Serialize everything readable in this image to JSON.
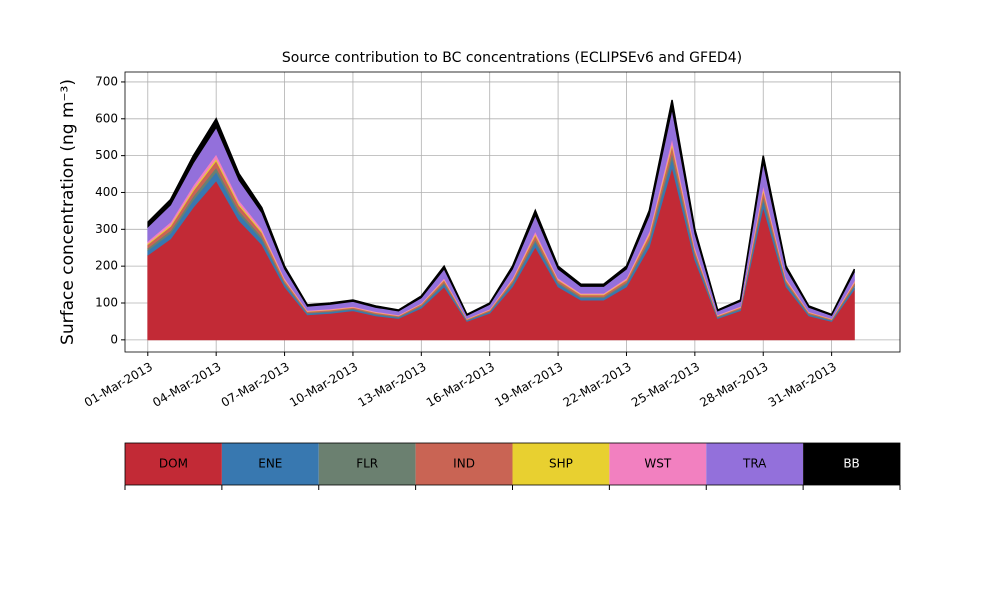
{
  "chart_data": {
    "type": "stacked_area",
    "title": "Source contribution to BC concentrations (ECLIPSEv6 and GFED4)",
    "y_label": "Surface concentration (ng m⁻³)",
    "x": [
      "01-Mar-2013",
      "02-Mar-2013",
      "03-Mar-2013",
      "04-Mar-2013",
      "05-Mar-2013",
      "06-Mar-2013",
      "07-Mar-2013",
      "08-Mar-2013",
      "09-Mar-2013",
      "10-Mar-2013",
      "11-Mar-2013",
      "12-Mar-2013",
      "13-Mar-2013",
      "14-Mar-2013",
      "15-Mar-2013",
      "16-Mar-2013",
      "17-Mar-2013",
      "18-Mar-2013",
      "19-Mar-2013",
      "20-Mar-2013",
      "21-Mar-2013",
      "22-Mar-2013",
      "23-Mar-2013",
      "24-Mar-2013",
      "25-Mar-2013",
      "26-Mar-2013",
      "27-Mar-2013",
      "28-Mar-2013",
      "29-Mar-2013",
      "30-Mar-2013",
      "31-Mar-2013",
      "01-Apr-2013"
    ],
    "series": [
      {
        "name": "DOM",
        "color": "#c22a36",
        "values": [
          230,
          274,
          360,
          432,
          324,
          259,
          144,
          68,
          72,
          79,
          65,
          58,
          86,
          144,
          50,
          72,
          144,
          252,
          144,
          108,
          108,
          144,
          252,
          468,
          216,
          58,
          79,
          360,
          144,
          65,
          50,
          137
        ]
      },
      {
        "name": "ENE",
        "color": "#3878b0",
        "values": [
          13,
          15,
          20,
          24,
          18,
          14,
          8,
          4,
          4,
          4,
          4,
          3,
          5,
          8,
          3,
          4,
          8,
          14,
          8,
          6,
          6,
          8,
          14,
          26,
          12,
          3,
          4,
          20,
          8,
          4,
          3,
          8
        ]
      },
      {
        "name": "FLR",
        "color": "#6b8070",
        "values": [
          6,
          8,
          10,
          12,
          9,
          7,
          4,
          2,
          2,
          2,
          2,
          2,
          2,
          4,
          1,
          2,
          4,
          7,
          4,
          3,
          3,
          4,
          7,
          13,
          6,
          2,
          2,
          10,
          4,
          2,
          1,
          4
        ]
      },
      {
        "name": "IND",
        "color": "#c96454",
        "values": [
          10,
          11,
          15,
          18,
          14,
          11,
          6,
          3,
          3,
          3,
          3,
          2,
          4,
          6,
          2,
          3,
          6,
          11,
          6,
          5,
          5,
          6,
          11,
          20,
          9,
          2,
          3,
          15,
          6,
          3,
          2,
          6
        ]
      },
      {
        "name": "SHP",
        "color": "#e8d030",
        "values": [
          3,
          4,
          5,
          6,
          5,
          4,
          2,
          1,
          1,
          1,
          1,
          1,
          1,
          2,
          1,
          1,
          2,
          4,
          2,
          2,
          2,
          2,
          4,
          7,
          3,
          1,
          1,
          5,
          2,
          1,
          1,
          2
        ]
      },
      {
        "name": "WST",
        "color": "#f280c0",
        "values": [
          6,
          8,
          10,
          12,
          9,
          7,
          4,
          2,
          2,
          2,
          2,
          2,
          2,
          4,
          1,
          2,
          4,
          7,
          4,
          3,
          3,
          4,
          7,
          13,
          6,
          2,
          2,
          10,
          4,
          2,
          1,
          4
        ]
      },
      {
        "name": "TRA",
        "color": "#9370db",
        "values": [
          38,
          46,
          60,
          72,
          54,
          43,
          24,
          11,
          12,
          13,
          11,
          10,
          14,
          24,
          8,
          12,
          24,
          42,
          24,
          18,
          18,
          24,
          42,
          78,
          36,
          10,
          13,
          60,
          24,
          11,
          8,
          23
        ]
      },
      {
        "name": "BB",
        "color": "#000000",
        "values": [
          13,
          15,
          20,
          24,
          18,
          14,
          8,
          4,
          4,
          4,
          4,
          3,
          5,
          8,
          3,
          4,
          8,
          14,
          8,
          6,
          6,
          8,
          14,
          26,
          12,
          3,
          4,
          20,
          8,
          4,
          3,
          8
        ]
      }
    ],
    "xlim": [
      "28-Feb-2013",
      "03-Apr-2013"
    ],
    "xticks": [
      "01-Mar-2013",
      "04-Mar-2013",
      "07-Mar-2013",
      "10-Mar-2013",
      "13-Mar-2013",
      "16-Mar-2013",
      "19-Mar-2013",
      "22-Mar-2013",
      "25-Mar-2013",
      "28-Mar-2013",
      "31-Mar-2013"
    ],
    "ylim": [
      -33,
      727
    ],
    "yticks": [
      0,
      100,
      200,
      300,
      400,
      500,
      600,
      700
    ],
    "grid": true
  }
}
